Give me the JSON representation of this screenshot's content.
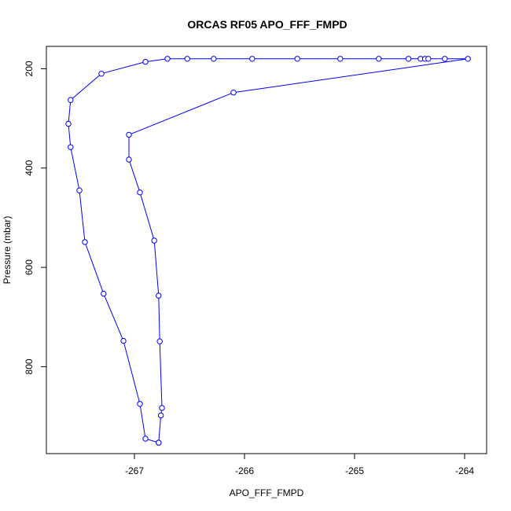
{
  "chart_data": {
    "type": "line",
    "title": "ORCAS RF05 APO_FFF_FMPD",
    "xlabel": "APO_FFF_FMPD",
    "ylabel": "Pressure (mbar)",
    "xlim": [
      -267.8,
      -263.8
    ],
    "ylim": [
      975,
      155
    ],
    "y_reversed": true,
    "grid": false,
    "x_ticks": [
      -267,
      -266,
      -265,
      -264
    ],
    "y_ticks": [
      200,
      400,
      600,
      800
    ],
    "colors": {
      "series": "#0000ff",
      "axis": "#000000",
      "background": "#ffffff"
    },
    "series": [
      {
        "x": [
          -266.78,
          -266.9,
          -266.95,
          -267.1,
          -267.28,
          -267.45,
          -267.5,
          -267.58,
          -267.6,
          -267.58,
          -267.3,
          -266.9,
          -266.7,
          -266.52,
          -266.28,
          -265.93,
          -265.52,
          -265.13,
          -264.78,
          -264.51,
          -264.4,
          -264.36,
          -264.33,
          -264.18,
          -263.97,
          -266.1,
          -267.05,
          -267.05,
          -266.95,
          -266.82,
          -266.78,
          -266.77,
          -266.75,
          -266.76,
          -266.78
        ],
        "y": [
          953,
          945,
          875,
          748,
          653,
          549,
          445,
          358,
          311,
          263,
          210,
          186,
          180,
          180,
          180,
          180,
          180,
          180,
          180,
          180,
          180,
          180,
          180,
          180,
          180,
          248,
          333,
          383,
          449,
          546,
          657,
          749,
          883,
          898,
          953
        ]
      }
    ]
  }
}
